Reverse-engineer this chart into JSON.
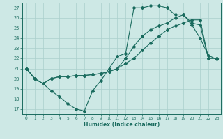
{
  "xlabel": "Humidex (Indice chaleur)",
  "bg_color": "#cde8e5",
  "grid_color": "#aacfcc",
  "line_color": "#1a6b5e",
  "xlim_min": -0.5,
  "xlim_max": 23.5,
  "ylim_min": 16.5,
  "ylim_max": 27.5,
  "xticks": [
    0,
    1,
    2,
    3,
    4,
    5,
    6,
    7,
    8,
    9,
    10,
    11,
    12,
    13,
    14,
    15,
    16,
    17,
    18,
    19,
    20,
    21,
    22,
    23
  ],
  "yticks": [
    17,
    18,
    19,
    20,
    21,
    22,
    23,
    24,
    25,
    26,
    27
  ],
  "line1_x": [
    0,
    1,
    2,
    3,
    4,
    5,
    6,
    7,
    8,
    9,
    10,
    11,
    12,
    13,
    14,
    15,
    16,
    17,
    18,
    19,
    20,
    21,
    22,
    23
  ],
  "line1_y": [
    21.0,
    20.0,
    19.5,
    18.8,
    18.2,
    17.5,
    17.0,
    16.8,
    18.8,
    19.8,
    21.0,
    22.2,
    22.5,
    27.0,
    27.0,
    27.2,
    27.2,
    27.0,
    26.3,
    26.3,
    25.3,
    24.0,
    22.3,
    21.9
  ],
  "line2_x": [
    0,
    1,
    2,
    3,
    4,
    5,
    6,
    7,
    8,
    9,
    10,
    11,
    12,
    13,
    14,
    15,
    16,
    17,
    18,
    19,
    20,
    21,
    22,
    23
  ],
  "line2_y": [
    21.0,
    20.0,
    19.5,
    20.0,
    20.2,
    20.2,
    20.3,
    20.3,
    20.4,
    20.5,
    20.7,
    21.0,
    21.5,
    22.0,
    22.8,
    23.5,
    24.2,
    24.8,
    25.2,
    25.5,
    25.8,
    25.8,
    22.0,
    22.0
  ],
  "line3_x": [
    0,
    1,
    2,
    3,
    4,
    5,
    6,
    7,
    8,
    9,
    10,
    11,
    12,
    13,
    14,
    15,
    16,
    17,
    18,
    19,
    20,
    21,
    22,
    23
  ],
  "line3_y": [
    21.0,
    20.0,
    19.5,
    20.0,
    20.2,
    20.2,
    20.3,
    20.3,
    20.4,
    20.5,
    20.7,
    21.0,
    22.0,
    23.2,
    24.2,
    24.8,
    25.2,
    25.5,
    26.0,
    26.3,
    25.5,
    25.3,
    22.0,
    22.0
  ]
}
